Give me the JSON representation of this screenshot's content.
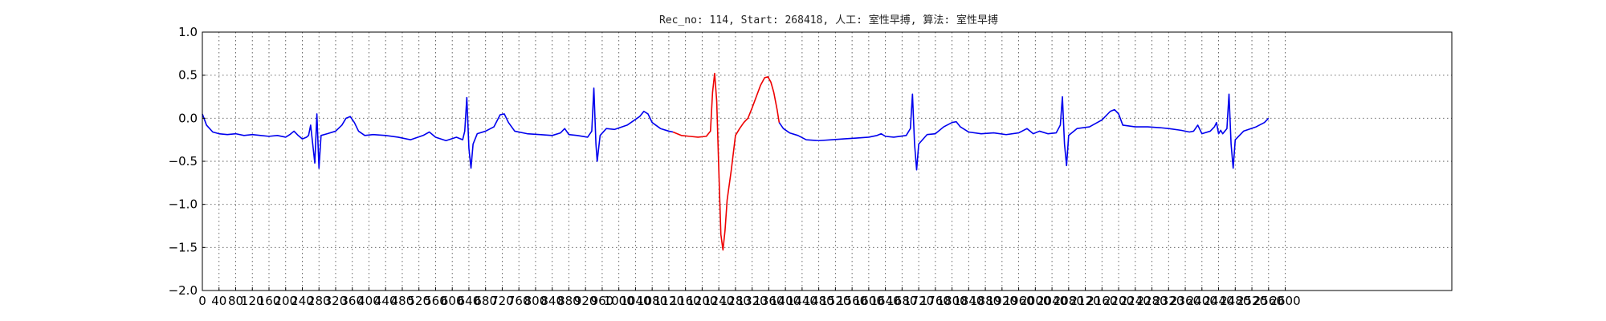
{
  "chart_data": {
    "type": "line",
    "title": "Rec_no: 114, Start: 268418, 人工: 室性早搏, 算法: 室性早搏",
    "xlabel": "",
    "ylabel": "",
    "xlim": [
      0,
      3000
    ],
    "ylim": [
      -2.0,
      1.0
    ],
    "grid": true,
    "x_tick_values": [
      0,
      40,
      80,
      120,
      160,
      200,
      240,
      280,
      320,
      360,
      400,
      440,
      480,
      520,
      560,
      600,
      640,
      680,
      720,
      760,
      800,
      840,
      880,
      920,
      960,
      1000,
      1040,
      1080,
      1120,
      1160,
      1200,
      1240,
      1280,
      1320,
      1360,
      1400,
      1440,
      1480,
      1520,
      1560,
      1600,
      1640,
      1680,
      1720,
      1760,
      1800,
      1840,
      1880,
      1920,
      1960,
      2000,
      2040,
      2080,
      2120,
      2160,
      2200,
      2240,
      2280,
      2320,
      2360,
      2400,
      2440,
      2480,
      2520,
      2560,
      2600
    ],
    "x_tick_labels": [
      "0",
      "40",
      "80",
      "120",
      "160",
      "200",
      "240",
      "280",
      "320",
      "360",
      "400",
      "440",
      "480",
      "520",
      "560",
      "600",
      "640",
      "680",
      "720",
      "760",
      "800",
      "840",
      "880",
      "920",
      "960",
      "1000",
      "1040",
      "1080",
      "1120",
      "1160",
      "1200",
      "1240",
      "1280",
      "1320",
      "1360",
      "1400",
      "1440",
      "1480",
      "1520",
      "1560",
      "1600",
      "1640",
      "1680",
      "1720",
      "1760",
      "1800",
      "1840",
      "1880",
      "1920",
      "1960",
      "2000",
      "2040",
      "2080",
      "2120",
      "2160",
      "2200",
      "2240",
      "2280",
      "2320",
      "2360",
      "2400",
      "2440",
      "2480",
      "2520",
      "2560",
      "2600"
    ],
    "y_tick_values": [
      1.0,
      0.5,
      0.0,
      -0.5,
      -1.0,
      -1.5,
      -2.0
    ],
    "y_tick_labels": [
      "1.0",
      "0.5",
      "0.0",
      "−0.5",
      "−1.0",
      "−1.5",
      "−2.0"
    ],
    "series": [
      {
        "color": "#0000ee",
        "points": [
          [
            0,
            0.05
          ],
          [
            10,
            -0.08
          ],
          [
            25,
            -0.16
          ],
          [
            40,
            -0.18
          ],
          [
            60,
            -0.19
          ],
          [
            80,
            -0.18
          ],
          [
            100,
            -0.2
          ],
          [
            120,
            -0.19
          ],
          [
            140,
            -0.2
          ],
          [
            160,
            -0.21
          ],
          [
            180,
            -0.2
          ],
          [
            200,
            -0.22
          ],
          [
            210,
            -0.19
          ],
          [
            220,
            -0.15
          ],
          [
            230,
            -0.2
          ],
          [
            240,
            -0.24
          ],
          [
            250,
            -0.22
          ],
          [
            255,
            -0.2
          ],
          [
            260,
            -0.08
          ],
          [
            265,
            -0.3
          ],
          [
            270,
            -0.52
          ],
          [
            275,
            0.05
          ],
          [
            280,
            -0.58
          ],
          [
            285,
            -0.2
          ],
          [
            300,
            -0.18
          ],
          [
            320,
            -0.15
          ],
          [
            335,
            -0.08
          ],
          [
            345,
            0.0
          ],
          [
            355,
            0.02
          ],
          [
            365,
            -0.05
          ],
          [
            375,
            -0.15
          ],
          [
            390,
            -0.2
          ],
          [
            410,
            -0.19
          ],
          [
            440,
            -0.2
          ],
          [
            470,
            -0.22
          ],
          [
            500,
            -0.25
          ],
          [
            530,
            -0.2
          ],
          [
            545,
            -0.16
          ],
          [
            560,
            -0.22
          ],
          [
            585,
            -0.26
          ],
          [
            610,
            -0.22
          ],
          [
            625,
            -0.25
          ],
          [
            630,
            -0.15
          ],
          [
            635,
            0.24
          ],
          [
            640,
            -0.35
          ],
          [
            645,
            -0.58
          ],
          [
            650,
            -0.3
          ],
          [
            660,
            -0.18
          ],
          [
            680,
            -0.15
          ],
          [
            700,
            -0.1
          ],
          [
            715,
            0.04
          ],
          [
            725,
            0.05
          ],
          [
            735,
            -0.05
          ],
          [
            750,
            -0.15
          ],
          [
            780,
            -0.18
          ],
          [
            810,
            -0.19
          ],
          [
            840,
            -0.2
          ],
          [
            860,
            -0.17
          ],
          [
            870,
            -0.12
          ],
          [
            880,
            -0.19
          ],
          [
            900,
            -0.2
          ],
          [
            925,
            -0.22
          ],
          [
            935,
            -0.15
          ],
          [
            940,
            0.35
          ],
          [
            945,
            -0.3
          ],
          [
            948,
            -0.5
          ],
          [
            955,
            -0.2
          ],
          [
            970,
            -0.12
          ],
          [
            990,
            -0.13
          ],
          [
            1020,
            -0.08
          ],
          [
            1050,
            0.02
          ],
          [
            1060,
            0.08
          ],
          [
            1070,
            0.05
          ],
          [
            1080,
            -0.05
          ],
          [
            1100,
            -0.12
          ],
          [
            1120,
            -0.15
          ],
          [
            1130,
            -0.16
          ]
        ]
      },
      {
        "color": "#ee0000",
        "points": [
          [
            1130,
            -0.16
          ],
          [
            1150,
            -0.2
          ],
          [
            1170,
            -0.21
          ],
          [
            1190,
            -0.22
          ],
          [
            1210,
            -0.21
          ],
          [
            1220,
            -0.15
          ],
          [
            1225,
            0.3
          ],
          [
            1230,
            0.52
          ],
          [
            1235,
            0.2
          ],
          [
            1240,
            -0.6
          ],
          [
            1245,
            -1.35
          ],
          [
            1250,
            -1.53
          ],
          [
            1255,
            -1.3
          ],
          [
            1260,
            -0.95
          ],
          [
            1270,
            -0.6
          ],
          [
            1280,
            -0.2
          ],
          [
            1290,
            -0.12
          ],
          [
            1300,
            -0.05
          ],
          [
            1310,
            0.0
          ],
          [
            1320,
            0.12
          ],
          [
            1330,
            0.25
          ],
          [
            1340,
            0.38
          ],
          [
            1350,
            0.47
          ],
          [
            1358,
            0.48
          ],
          [
            1365,
            0.42
          ],
          [
            1372,
            0.3
          ],
          [
            1380,
            0.1
          ],
          [
            1385,
            -0.05
          ]
        ]
      },
      {
        "color": "#0000ee",
        "points": [
          [
            1385,
            -0.05
          ],
          [
            1395,
            -0.12
          ],
          [
            1410,
            -0.17
          ],
          [
            1430,
            -0.2
          ],
          [
            1450,
            -0.25
          ],
          [
            1480,
            -0.26
          ],
          [
            1510,
            -0.25
          ],
          [
            1540,
            -0.24
          ],
          [
            1570,
            -0.23
          ],
          [
            1600,
            -0.22
          ],
          [
            1620,
            -0.2
          ],
          [
            1630,
            -0.18
          ],
          [
            1640,
            -0.21
          ],
          [
            1660,
            -0.22
          ],
          [
            1690,
            -0.2
          ],
          [
            1700,
            -0.12
          ],
          [
            1705,
            0.28
          ],
          [
            1710,
            -0.3
          ],
          [
            1715,
            -0.6
          ],
          [
            1720,
            -0.3
          ],
          [
            1740,
            -0.19
          ],
          [
            1760,
            -0.18
          ],
          [
            1780,
            -0.1
          ],
          [
            1800,
            -0.05
          ],
          [
            1810,
            -0.04
          ],
          [
            1820,
            -0.1
          ],
          [
            1840,
            -0.16
          ],
          [
            1870,
            -0.18
          ],
          [
            1900,
            -0.17
          ],
          [
            1930,
            -0.19
          ],
          [
            1960,
            -0.17
          ],
          [
            1980,
            -0.12
          ],
          [
            1995,
            -0.18
          ],
          [
            2010,
            -0.15
          ],
          [
            2030,
            -0.18
          ],
          [
            2050,
            -0.17
          ],
          [
            2060,
            -0.08
          ],
          [
            2065,
            0.25
          ],
          [
            2070,
            -0.3
          ],
          [
            2075,
            -0.55
          ],
          [
            2080,
            -0.2
          ],
          [
            2100,
            -0.12
          ],
          [
            2130,
            -0.1
          ],
          [
            2160,
            -0.02
          ],
          [
            2180,
            0.08
          ],
          [
            2190,
            0.1
          ],
          [
            2200,
            0.05
          ],
          [
            2210,
            -0.08
          ],
          [
            2240,
            -0.1
          ],
          [
            2270,
            -0.1
          ],
          [
            2300,
            -0.11
          ],
          [
            2320,
            -0.12
          ],
          [
            2350,
            -0.14
          ],
          [
            2370,
            -0.16
          ],
          [
            2380,
            -0.15
          ],
          [
            2390,
            -0.08
          ],
          [
            2400,
            -0.18
          ],
          [
            2420,
            -0.15
          ],
          [
            2430,
            -0.1
          ],
          [
            2435,
            -0.05
          ],
          [
            2440,
            -0.18
          ],
          [
            2445,
            -0.14
          ],
          [
            2450,
            -0.18
          ],
          [
            2460,
            -0.12
          ],
          [
            2465,
            0.28
          ],
          [
            2470,
            -0.3
          ],
          [
            2475,
            -0.58
          ],
          [
            2480,
            -0.25
          ],
          [
            2500,
            -0.15
          ],
          [
            2530,
            -0.1
          ],
          [
            2550,
            -0.05
          ],
          [
            2560,
            0.0
          ]
        ]
      }
    ]
  }
}
